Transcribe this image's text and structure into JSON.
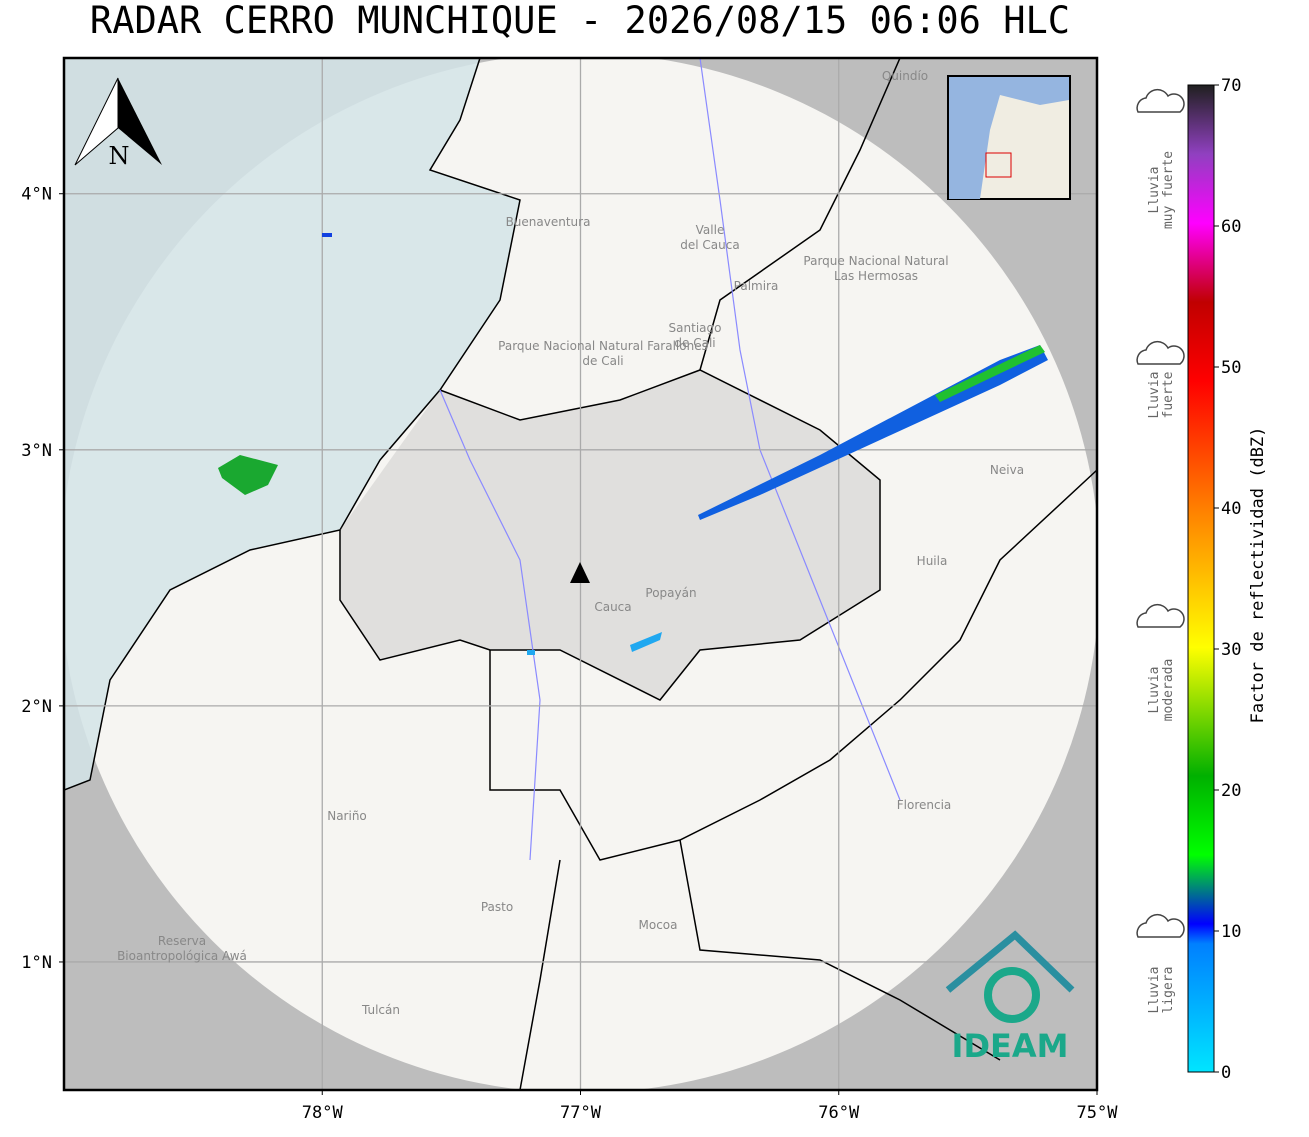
{
  "title": "RADAR CERRO MUNCHIQUE - 2026/08/15 06:06 HLC",
  "map": {
    "lonlim": [
      -79,
      -75
    ],
    "latlim": [
      0.5,
      4.53
    ],
    "lon_ticks": [
      {
        "value": -78,
        "label": "78°W"
      },
      {
        "value": -77,
        "label": "77°W"
      },
      {
        "value": -76,
        "label": "76°W"
      },
      {
        "value": -75,
        "label": "75°W"
      }
    ],
    "lat_ticks": [
      {
        "value": 4,
        "label": "4°N"
      },
      {
        "value": 3,
        "label": "3°N"
      },
      {
        "value": 2,
        "label": "2°N"
      },
      {
        "value": 1,
        "label": "1°N"
      }
    ],
    "grid": true,
    "north_label": "N",
    "places": [
      "Quindío",
      "Buenaventura",
      "Valle del Cauca",
      "Palmira",
      "Santiago de Cali",
      "Parque Nacional Natural Farallones de Cali",
      "Parque Nacional Natural Las Hermosas",
      "Neiva",
      "Popayán",
      "Cauca",
      "Huila",
      "Nariño",
      "Florencia",
      "Pasto",
      "Mocoa",
      "Reserva Bioantropológica Awá",
      "Tulcán"
    ],
    "logo": "IDEAM"
  },
  "colorbar": {
    "label": "Factor de reflectividad (dBZ)",
    "lim": [
      0,
      70
    ],
    "ticks": [
      0,
      10,
      20,
      30,
      40,
      50,
      60,
      70
    ]
  },
  "legend": [
    "Lluvia muy fuerte",
    "Lluvia fuerte",
    "Lluvia moderada",
    "Lluvia ligera"
  ]
}
